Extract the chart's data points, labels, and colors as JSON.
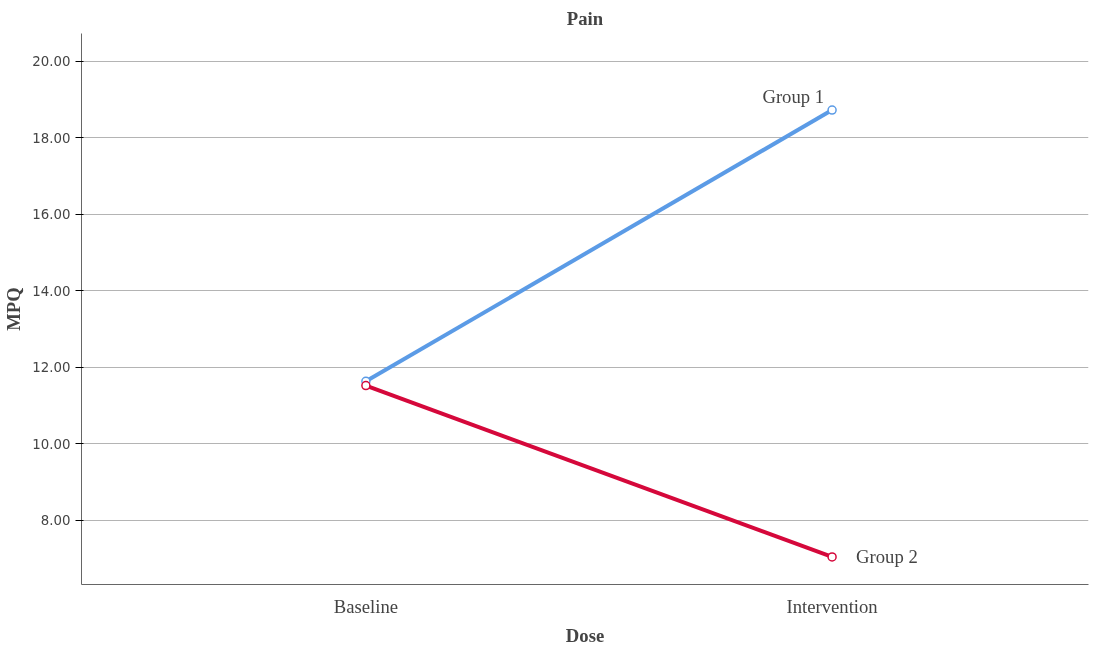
{
  "chart_data": {
    "type": "line",
    "title": "Pain",
    "xlabel": "Dose",
    "ylabel": "MPQ",
    "categories": [
      "Baseline",
      "Intervention"
    ],
    "series": [
      {
        "name": "Group 1",
        "color": "#5b9be6",
        "values": [
          11.63,
          18.72
        ]
      },
      {
        "name": "Group 2",
        "color": "#d5083b",
        "values": [
          11.52,
          7.04
        ]
      }
    ],
    "ylim": [
      6.32,
      20.72
    ],
    "yticks": [
      {
        "value": 8,
        "label": "8.00"
      },
      {
        "value": 10,
        "label": "10.00"
      },
      {
        "value": 12,
        "label": "12.00"
      },
      {
        "value": 14,
        "label": "14.00"
      },
      {
        "value": 16,
        "label": "16.00"
      },
      {
        "value": 18,
        "label": "18.00"
      },
      {
        "value": 20,
        "label": "20.00"
      }
    ],
    "grid": "y",
    "legend": false,
    "marker": "circle",
    "line_style": "solid"
  }
}
